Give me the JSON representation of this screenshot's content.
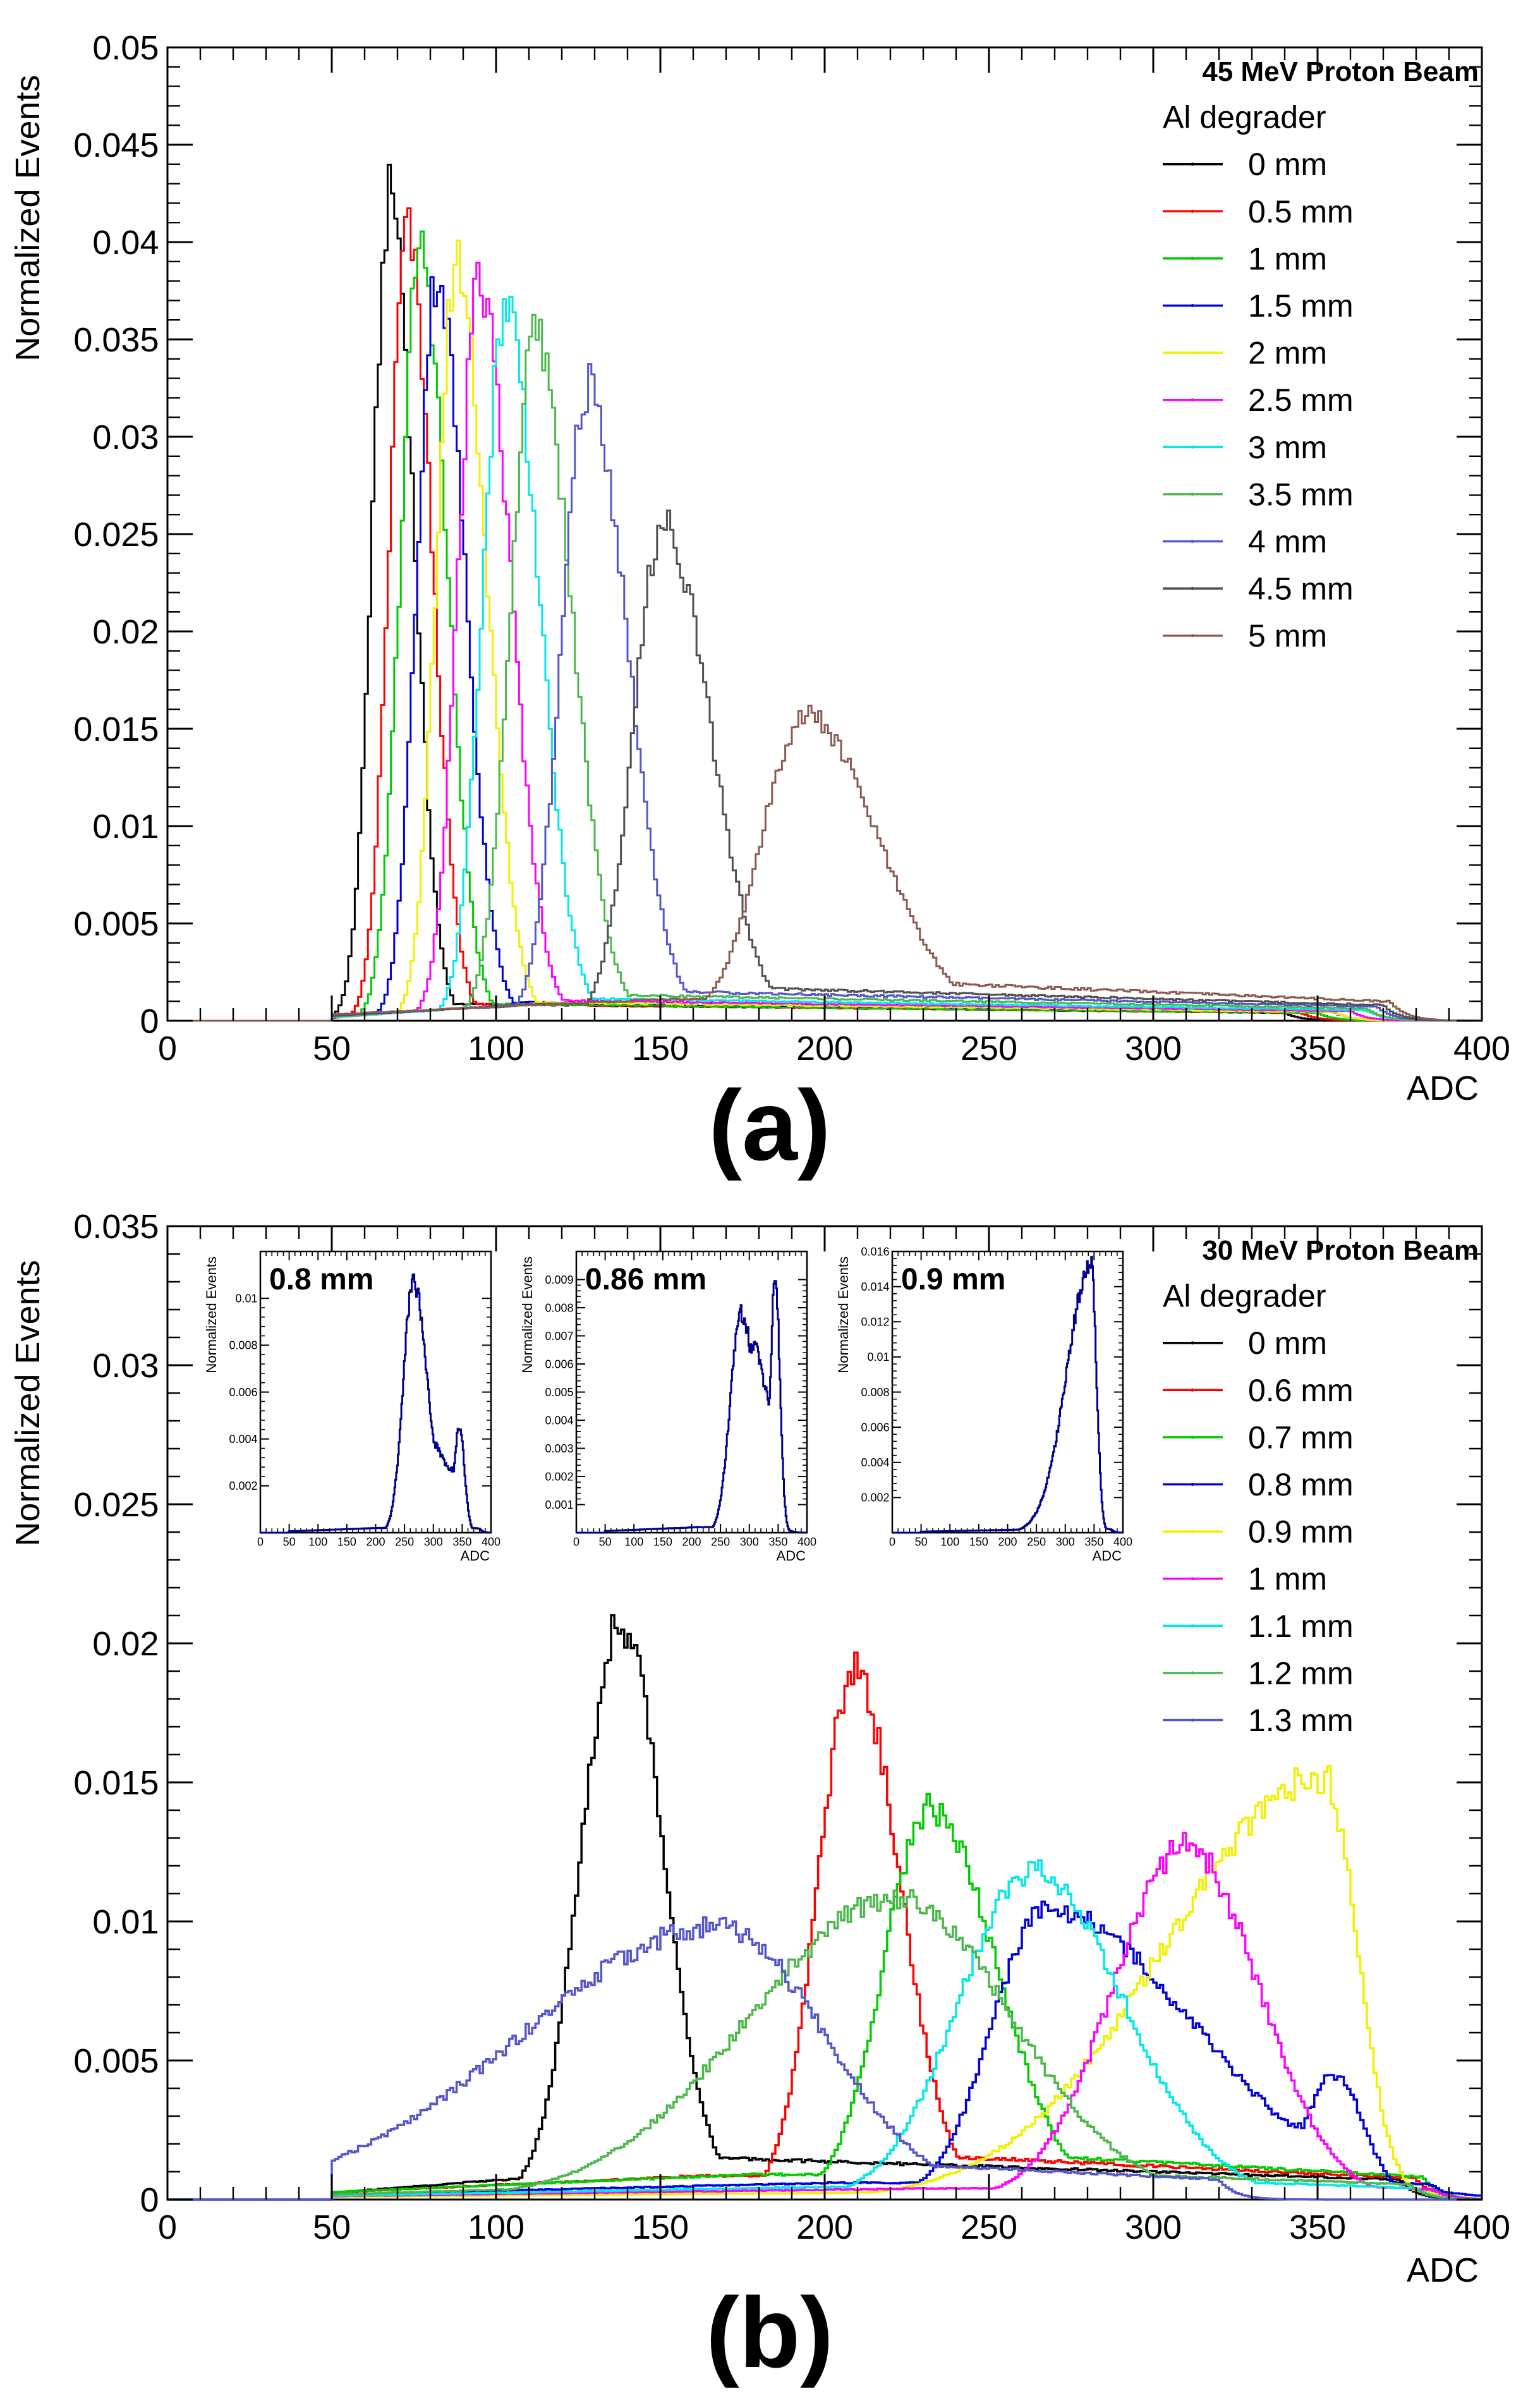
{
  "panel_labels": [
    "(a)",
    "(b)"
  ],
  "chart_data": [
    {
      "type": "line",
      "id": "panel-a",
      "title": "",
      "xlabel": "ADC",
      "ylabel": "Normalized Events",
      "xlim": [
        0,
        400
      ],
      "ylim": [
        0,
        0.05
      ],
      "xticks": [
        0,
        50,
        100,
        150,
        200,
        250,
        300,
        350,
        400
      ],
      "yticks": [
        0,
        0.005,
        0.01,
        0.015,
        0.02,
        0.025,
        0.03,
        0.035,
        0.04,
        0.045,
        0.05
      ],
      "ytick_labels": [
        "0",
        "0.005",
        "0.01",
        "0.015",
        "0.02",
        "0.025",
        "0.03",
        "0.035",
        "0.04",
        "0.045",
        "0.05"
      ],
      "legend": {
        "placement": "top-right",
        "header": "45 MeV Proton Beam",
        "subheader": "Al degrader"
      },
      "series": [
        {
          "name": "0 mm",
          "color": "#000000",
          "peak_x": 68,
          "peak_y": 0.0425,
          "left_width": 5.5,
          "right_width": 7,
          "tail": 0.0009,
          "tail_end": 340
        },
        {
          "name": "0.5 mm",
          "color": "#ff0000",
          "peak_x": 73,
          "peak_y": 0.0405,
          "left_width": 5.5,
          "right_width": 7.5,
          "tail": 0.0009,
          "tail_end": 345
        },
        {
          "name": "1 mm",
          "color": "#00cc00",
          "peak_x": 77,
          "peak_y": 0.0397,
          "left_width": 6,
          "right_width": 8,
          "tail": 0.0009,
          "tail_end": 350
        },
        {
          "name": "1.5 mm",
          "color": "#0000dd",
          "peak_x": 82,
          "peak_y": 0.0383,
          "left_width": 6,
          "right_width": 8.5,
          "tail": 0.001,
          "tail_end": 355
        },
        {
          "name": "2 mm",
          "color": "#f0f000",
          "peak_x": 88,
          "peak_y": 0.039,
          "left_width": 6,
          "right_width": 9,
          "tail": 0.001,
          "tail_end": 355
        },
        {
          "name": "2.5 mm",
          "color": "#ff00ff",
          "peak_x": 95,
          "peak_y": 0.0378,
          "left_width": 6.5,
          "right_width": 9.5,
          "tail": 0.0011,
          "tail_end": 360
        },
        {
          "name": "3 mm",
          "color": "#00e8e8",
          "peak_x": 103,
          "peak_y": 0.0369,
          "left_width": 7,
          "right_width": 10,
          "tail": 0.0012,
          "tail_end": 365
        },
        {
          "name": "3.5 mm",
          "color": "#4cb84c",
          "peak_x": 112,
          "peak_y": 0.0352,
          "left_width": 7.5,
          "right_width": 11,
          "tail": 0.0014,
          "tail_end": 365
        },
        {
          "name": "4 mm",
          "color": "#5555cc",
          "peak_x": 128,
          "peak_y": 0.0325,
          "left_width": 8,
          "right_width": 12,
          "tail": 0.0016,
          "tail_end": 368
        },
        {
          "name": "4.5 mm",
          "color": "#505050",
          "peak_x": 151,
          "peak_y": 0.0255,
          "left_width": 9,
          "right_width": 14,
          "tail": 0.0018,
          "tail_end": 370
        },
        {
          "name": "5 mm",
          "color": "#8b5a50",
          "peak_x": 194,
          "peak_y": 0.0157,
          "left_width": 13,
          "right_width": 22,
          "tail": 0.0022,
          "tail_end": 372
        }
      ]
    },
    {
      "type": "line",
      "id": "panel-b",
      "title": "",
      "xlabel": "ADC",
      "ylabel": "Normalized Events",
      "xlim": [
        0,
        400
      ],
      "ylim": [
        0,
        0.035
      ],
      "xticks": [
        0,
        50,
        100,
        150,
        200,
        250,
        300,
        350,
        400
      ],
      "yticks": [
        0,
        0.005,
        0.01,
        0.015,
        0.02,
        0.025,
        0.03,
        0.035
      ],
      "ytick_labels": [
        "0",
        "0.005",
        "0.01",
        "0.015",
        "0.02",
        "0.025",
        "0.03",
        "0.035"
      ],
      "legend": {
        "placement": "top-right",
        "header": "30 MeV Proton Beam",
        "subheader": "Al degrader"
      },
      "series": [
        {
          "name": "0 mm",
          "color": "#000000",
          "peak_x": 138,
          "peak_y": 0.0208,
          "left_width": 12,
          "right_width": 13,
          "tail": 0.0016,
          "tail_end": 375
        },
        {
          "name": "0.6 mm",
          "color": "#ff0000",
          "peak_x": 209,
          "peak_y": 0.019,
          "left_width": 11,
          "right_width": 14,
          "tail": 0.0017,
          "tail_end": 380
        },
        {
          "name": "0.7 mm",
          "color": "#00cc00",
          "peak_x": 232,
          "peak_y": 0.0141,
          "left_width": 14,
          "right_width": 20,
          "tail": 0.0018,
          "tail_end": 382
        },
        {
          "name": "0.8 mm",
          "color": "#0000dd",
          "peak_x": 267,
          "peak_y": 0.0105,
          "left_width": 16,
          "right_width": 45,
          "tail": 0.0012,
          "tail_end": 385,
          "bump_x": 355,
          "bump_y": 0.0045,
          "bump_w": 9
        },
        {
          "name": "0.9 mm",
          "color": "#f0f000",
          "peak_x": 352,
          "peak_y": 0.0152,
          "left_width": 48,
          "right_width": 10,
          "tail": 0.0006,
          "tail_end": 385
        },
        {
          "name": "1 mm",
          "color": "#ff00ff",
          "peak_x": 310,
          "peak_y": 0.0127,
          "left_width": 22,
          "right_width": 22,
          "tail": 0.0008,
          "tail_end": 385
        },
        {
          "name": "1.1 mm",
          "color": "#00e8e8",
          "peak_x": 263,
          "peak_y": 0.0118,
          "left_width": 22,
          "right_width": 28,
          "tail": 0.0009,
          "tail_end": 380
        },
        {
          "name": "1.2 mm",
          "color": "#4cb84c",
          "peak_x": 222,
          "peak_y": 0.0108,
          "left_width": 45,
          "right_width": 35,
          "tail": 0.0012,
          "tail_end": 378
        },
        {
          "name": "1.3 mm",
          "color": "#5555cc",
          "peak_x": 168,
          "peak_y": 0.0098,
          "left_width": 60,
          "right_width": 32,
          "tail": 0.0016,
          "tail_end": 320
        }
      ],
      "insets": [
        {
          "label": "0.8 mm",
          "xlabel": "ADC",
          "ylabel": "Normalized Events",
          "xlim": [
            0,
            400
          ],
          "ylim": [
            0,
            0.012
          ],
          "xticks": [
            0,
            50,
            100,
            150,
            200,
            250,
            300,
            350,
            400
          ],
          "yticks": [
            0.002,
            0.004,
            0.006,
            0.008,
            0.01
          ],
          "ytick_labels": [
            "0.002",
            "0.004",
            "0.006",
            "0.008",
            "0.01"
          ],
          "color": "#00008b",
          "peak_x": 265,
          "peak_y": 0.0107,
          "left_width": 17,
          "right_width": 25,
          "tail": 0.0004,
          "tail_end": 380,
          "bump_x": 345,
          "bump_y": 0.0045,
          "bump_w": 9
        },
        {
          "label": "0.86 mm",
          "xlabel": "ADC",
          "ylabel": "Normalized Events",
          "xlim": [
            0,
            400
          ],
          "ylim": [
            0,
            0.01
          ],
          "xticks": [
            0,
            50,
            100,
            150,
            200,
            250,
            300,
            350,
            400
          ],
          "yticks": [
            0.001,
            0.002,
            0.003,
            0.004,
            0.005,
            0.006,
            0.007,
            0.008,
            0.009
          ],
          "ytick_labels": [
            "0.001",
            "0.002",
            "0.003",
            "0.004",
            "0.005",
            "0.006",
            "0.007",
            "0.008",
            "0.009"
          ],
          "color": "#00008b",
          "peak_x": 285,
          "peak_y": 0.0078,
          "left_width": 18,
          "right_width": 28,
          "tail": 0.0004,
          "tail_end": 365,
          "bump_x": 345,
          "bump_y": 0.0091,
          "bump_w": 8
        },
        {
          "label": "0.9 mm",
          "xlabel": "ADC",
          "ylabel": "Normalized Events",
          "xlim": [
            0,
            400
          ],
          "ylim": [
            0,
            0.016
          ],
          "xticks": [
            0,
            50,
            100,
            150,
            200,
            250,
            300,
            350,
            400
          ],
          "yticks": [
            0.002,
            0.004,
            0.006,
            0.008,
            0.01,
            0.012,
            0.014,
            0.016
          ],
          "ytick_labels": [
            "0.002",
            "0.004",
            "0.006",
            "0.008",
            "0.01",
            "0.012",
            "0.014",
            "0.016"
          ],
          "color": "#00008b",
          "peak_x": 345,
          "peak_y": 0.0153,
          "left_width": 42,
          "right_width": 9,
          "tail": 0.0004,
          "tail_end": 380
        }
      ]
    }
  ]
}
